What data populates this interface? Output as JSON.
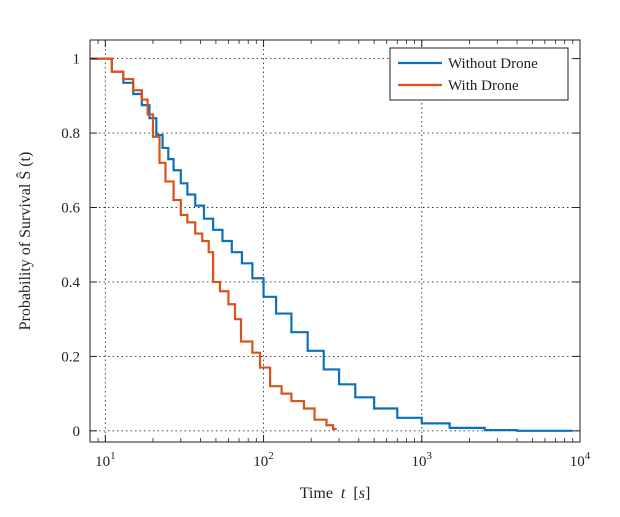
{
  "chart_data": {
    "type": "line",
    "xlabel_main": "Time",
    "xlabel_var": "t",
    "xlabel_unit": "s",
    "ylabel": "Probability of Survival Ŝ (t)",
    "xscale": "log",
    "xlim": [
      8,
      10000
    ],
    "ylim": [
      -0.03,
      1.05
    ],
    "grid": true,
    "legend_position": "top-right",
    "x_ticks": [
      {
        "value": 10,
        "base": "10",
        "exp": "1"
      },
      {
        "value": 100,
        "base": "10",
        "exp": "2"
      },
      {
        "value": 1000,
        "base": "10",
        "exp": "3"
      },
      {
        "value": 10000,
        "base": "10",
        "exp": "4"
      }
    ],
    "y_ticks": [
      {
        "value": 0,
        "label": "0"
      },
      {
        "value": 0.2,
        "label": "0.2"
      },
      {
        "value": 0.4,
        "label": "0.4"
      },
      {
        "value": 0.6,
        "label": "0.6"
      },
      {
        "value": 0.8,
        "label": "0.8"
      },
      {
        "value": 1.0,
        "label": "1"
      }
    ],
    "series": [
      {
        "name": "Without Drone",
        "color": "#0b72b9",
        "step": true,
        "points": [
          [
            8,
            1.0
          ],
          [
            10,
            1.0
          ],
          [
            11,
            0.965
          ],
          [
            13,
            0.935
          ],
          [
            15,
            0.905
          ],
          [
            17,
            0.875
          ],
          [
            19,
            0.84
          ],
          [
            21,
            0.795
          ],
          [
            23,
            0.76
          ],
          [
            25,
            0.73
          ],
          [
            27,
            0.7
          ],
          [
            30,
            0.665
          ],
          [
            33,
            0.635
          ],
          [
            37,
            0.605
          ],
          [
            42,
            0.57
          ],
          [
            48,
            0.54
          ],
          [
            55,
            0.51
          ],
          [
            63,
            0.48
          ],
          [
            73,
            0.45
          ],
          [
            85,
            0.41
          ],
          [
            100,
            0.36
          ],
          [
            120,
            0.315
          ],
          [
            150,
            0.265
          ],
          [
            190,
            0.215
          ],
          [
            240,
            0.165
          ],
          [
            300,
            0.125
          ],
          [
            380,
            0.09
          ],
          [
            500,
            0.06
          ],
          [
            700,
            0.035
          ],
          [
            1000,
            0.02
          ],
          [
            1500,
            0.008
          ],
          [
            2500,
            0.002
          ],
          [
            4000,
            0.0
          ],
          [
            9000,
            0.0
          ]
        ]
      },
      {
        "name": "With Drone",
        "color": "#d95319",
        "step": true,
        "points": [
          [
            8,
            1.0
          ],
          [
            10,
            1.0
          ],
          [
            11,
            0.965
          ],
          [
            13,
            0.945
          ],
          [
            15,
            0.915
          ],
          [
            17,
            0.89
          ],
          [
            18.5,
            0.85
          ],
          [
            20,
            0.79
          ],
          [
            22,
            0.72
          ],
          [
            24,
            0.67
          ],
          [
            27,
            0.62
          ],
          [
            30,
            0.58
          ],
          [
            33,
            0.56
          ],
          [
            37,
            0.53
          ],
          [
            41,
            0.51
          ],
          [
            45,
            0.48
          ],
          [
            48,
            0.4
          ],
          [
            53,
            0.375
          ],
          [
            60,
            0.34
          ],
          [
            66,
            0.3
          ],
          [
            72,
            0.24
          ],
          [
            85,
            0.21
          ],
          [
            95,
            0.17
          ],
          [
            110,
            0.12
          ],
          [
            130,
            0.1
          ],
          [
            150,
            0.08
          ],
          [
            180,
            0.06
          ],
          [
            210,
            0.03
          ],
          [
            250,
            0.015
          ],
          [
            275,
            0.005
          ],
          [
            290,
            0.005
          ]
        ]
      }
    ]
  }
}
